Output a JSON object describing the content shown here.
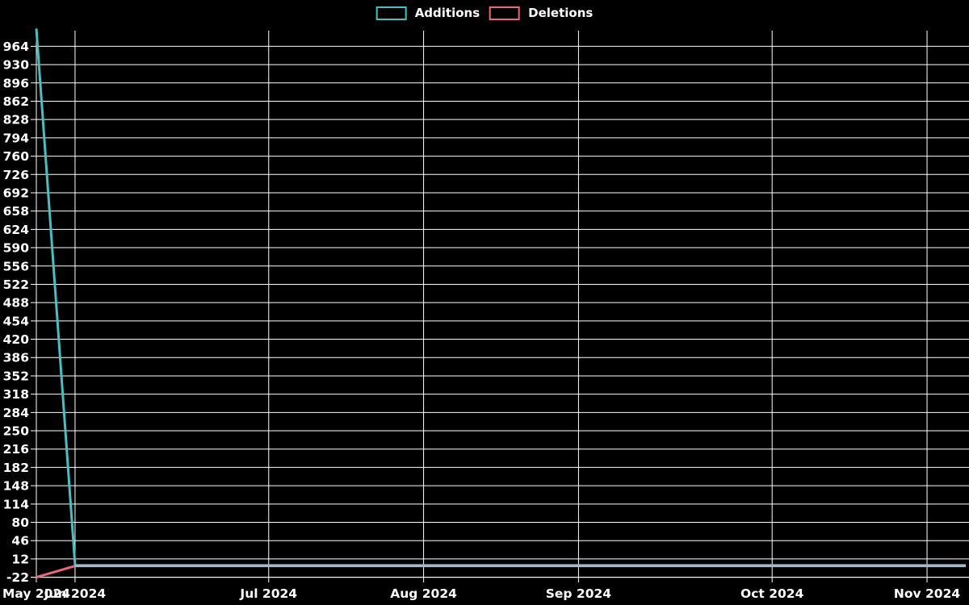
{
  "colors": {
    "background": "#000000",
    "grid": "#ffffff",
    "text": "#ffffff",
    "additions": "#41c3c3",
    "deletions": "#f2647e",
    "overlap_flat_line": "#a4b9c3"
  },
  "legend": {
    "items": [
      {
        "label": "Additions",
        "color": "#41c3c3"
      },
      {
        "label": "Deletions",
        "color": "#f2647e"
      }
    ]
  },
  "chart_data": {
    "type": "line",
    "title": "",
    "xlabel": "",
    "ylabel": "",
    "grid": true,
    "legend_position": "top-center",
    "x_tick_labels": [
      "May 2024",
      "Jun 2024",
      "Jul 2024",
      "Aug 2024",
      "Sep 2024",
      "Oct 2024",
      "Nov 2024"
    ],
    "x_tick_weeks": [
      0,
      1,
      6,
      10,
      14,
      19,
      23
    ],
    "x_total_weeks": 25,
    "y_ticks": [
      -22,
      12,
      46,
      80,
      114,
      148,
      182,
      216,
      250,
      284,
      318,
      352,
      386,
      420,
      454,
      488,
      522,
      556,
      590,
      624,
      658,
      692,
      726,
      760,
      794,
      828,
      862,
      896,
      930,
      964
    ],
    "ylim": [
      -22,
      993
    ],
    "series": [
      {
        "name": "Additions",
        "color": "#41c3c3",
        "values": [
          997,
          0,
          0,
          0,
          0,
          0,
          0,
          0,
          0,
          0,
          0,
          0,
          0,
          0,
          0,
          0,
          0,
          0,
          0,
          0,
          0,
          0,
          0,
          0,
          0
        ]
      },
      {
        "name": "Deletions",
        "color": "#f2647e",
        "values": [
          -22,
          -1,
          -1,
          -1,
          -1,
          -1,
          -1,
          -1,
          -1,
          -1,
          -1,
          -1,
          -1,
          -1,
          -1,
          -1,
          -1,
          -1,
          -1,
          -1,
          -1,
          -1,
          -1,
          -1,
          -1
        ]
      }
    ],
    "overlap_line": {
      "color": "#a4b9c3",
      "start_week": 1,
      "end_week": 24,
      "value": -0.5
    }
  }
}
